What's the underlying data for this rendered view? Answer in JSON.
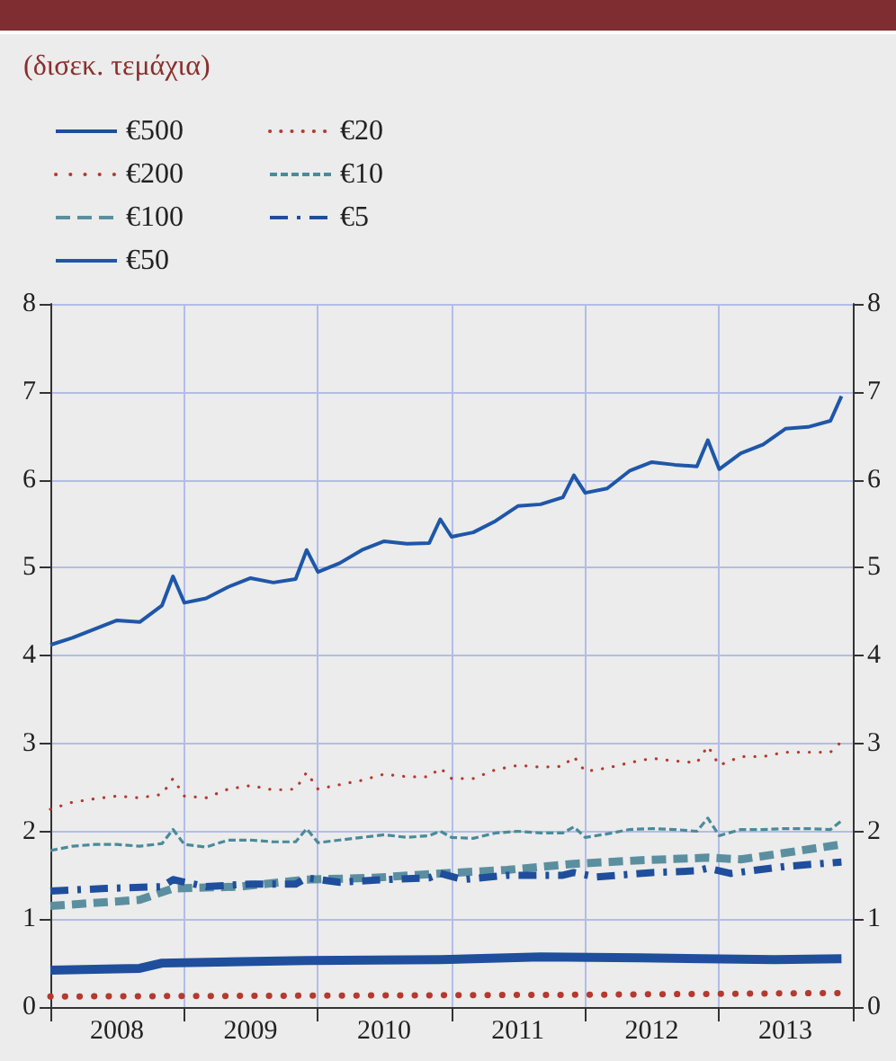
{
  "chart_data": {
    "type": "line",
    "subtitle": "(δισεκ. τεμάχια)",
    "xlim": [
      "2008-01",
      "2014-01"
    ],
    "xticks": [
      {
        "value": "2008-01",
        "label": null
      },
      {
        "value": "2008-07",
        "label": "2008"
      },
      {
        "value": "2009-01",
        "label": null
      },
      {
        "value": "2009-07",
        "label": "2009"
      },
      {
        "value": "2010-01",
        "label": null
      },
      {
        "value": "2010-07",
        "label": "2010"
      },
      {
        "value": "2011-01",
        "label": null
      },
      {
        "value": "2011-07",
        "label": "2011"
      },
      {
        "value": "2012-01",
        "label": null
      },
      {
        "value": "2012-07",
        "label": "2012"
      },
      {
        "value": "2013-01",
        "label": null
      },
      {
        "value": "2013-07",
        "label": "2013"
      },
      {
        "value": "2014-01",
        "label": null
      }
    ],
    "ylim": [
      0,
      8
    ],
    "yticks": [
      0,
      1,
      2,
      3,
      4,
      5,
      6,
      7,
      8
    ],
    "y2lim": [
      0,
      8
    ],
    "y2ticks": [
      0,
      1,
      2,
      3,
      4,
      5,
      6,
      7,
      8
    ],
    "grid": true,
    "legend": "top left",
    "marker": "none",
    "series": [
      {
        "name": "€500",
        "color": "#1f4e9c",
        "line_style": "solid",
        "x": [
          "2008-01",
          "2008-09",
          "2008-11",
          "2009-12",
          "2010-12",
          "2011-09",
          "2012-06",
          "2013-06",
          "2013-12"
        ],
        "values": [
          0.42,
          0.44,
          0.5,
          0.53,
          0.54,
          0.57,
          0.56,
          0.54,
          0.55
        ]
      },
      {
        "name": "€200",
        "color": "#b5392f",
        "line_style": "dotted",
        "x": [
          "2008-01",
          "2010-01",
          "2012-01",
          "2013-12"
        ],
        "values": [
          0.12,
          0.13,
          0.14,
          0.16
        ]
      },
      {
        "name": "€100",
        "color": "#5b8fa0",
        "line_style": "dashed",
        "x": [
          "2008-01",
          "2008-09",
          "2008-12",
          "2009-06",
          "2009-12",
          "2010-06",
          "2010-12",
          "2011-06",
          "2011-12",
          "2012-06",
          "2012-12",
          "2013-03",
          "2013-12"
        ],
        "values": [
          1.15,
          1.22,
          1.35,
          1.37,
          1.45,
          1.47,
          1.52,
          1.56,
          1.63,
          1.67,
          1.7,
          1.68,
          1.85
        ]
      },
      {
        "name": "€50",
        "color": "#1f56a8",
        "line_style": "solid",
        "x": [
          "2008-01",
          "2008-03",
          "2008-05",
          "2008-07",
          "2008-09",
          "2008-11",
          "2008-12",
          "2009-01",
          "2009-03",
          "2009-05",
          "2009-07",
          "2009-09",
          "2009-11",
          "2009-12",
          "2010-01",
          "2010-03",
          "2010-05",
          "2010-07",
          "2010-09",
          "2010-11",
          "2010-12",
          "2011-01",
          "2011-03",
          "2011-05",
          "2011-07",
          "2011-09",
          "2011-11",
          "2011-12",
          "2012-01",
          "2012-03",
          "2012-05",
          "2012-07",
          "2012-09",
          "2012-11",
          "2012-12",
          "2013-01",
          "2013-03",
          "2013-05",
          "2013-07",
          "2013-09",
          "2013-11",
          "2013-12"
        ],
        "values": [
          4.12,
          4.2,
          4.3,
          4.4,
          4.38,
          4.57,
          4.9,
          4.6,
          4.65,
          4.78,
          4.88,
          4.83,
          4.87,
          5.2,
          4.95,
          5.05,
          5.2,
          5.3,
          5.27,
          5.28,
          5.55,
          5.35,
          5.4,
          5.53,
          5.7,
          5.72,
          5.8,
          6.05,
          5.85,
          5.9,
          6.1,
          6.2,
          6.17,
          6.15,
          6.45,
          6.12,
          6.3,
          6.4,
          6.58,
          6.6,
          6.67,
          6.95
        ]
      },
      {
        "name": "€20",
        "color": "#b5392f",
        "line_style": "dotted",
        "x": [
          "2008-01",
          "2008-03",
          "2008-05",
          "2008-07",
          "2008-09",
          "2008-11",
          "2008-12",
          "2009-01",
          "2009-03",
          "2009-05",
          "2009-07",
          "2009-09",
          "2009-11",
          "2009-12",
          "2010-01",
          "2010-03",
          "2010-05",
          "2010-07",
          "2010-09",
          "2010-11",
          "2010-12",
          "2011-01",
          "2011-03",
          "2011-05",
          "2011-07",
          "2011-09",
          "2011-11",
          "2011-12",
          "2012-01",
          "2012-03",
          "2012-05",
          "2012-07",
          "2012-09",
          "2012-11",
          "2012-12",
          "2013-01",
          "2013-03",
          "2013-05",
          "2013-07",
          "2013-09",
          "2013-11",
          "2013-12"
        ],
        "values": [
          2.25,
          2.33,
          2.37,
          2.4,
          2.38,
          2.42,
          2.6,
          2.4,
          2.38,
          2.48,
          2.52,
          2.47,
          2.48,
          2.67,
          2.48,
          2.53,
          2.58,
          2.65,
          2.62,
          2.62,
          2.72,
          2.6,
          2.6,
          2.7,
          2.75,
          2.73,
          2.74,
          2.85,
          2.68,
          2.72,
          2.78,
          2.83,
          2.8,
          2.78,
          2.97,
          2.75,
          2.85,
          2.85,
          2.9,
          2.9,
          2.9,
          3.02
        ]
      },
      {
        "name": "€10",
        "color": "#4a8a9a",
        "line_style": "dashed",
        "x": [
          "2008-01",
          "2008-03",
          "2008-05",
          "2008-07",
          "2008-09",
          "2008-11",
          "2008-12",
          "2009-01",
          "2009-03",
          "2009-05",
          "2009-07",
          "2009-09",
          "2009-11",
          "2009-12",
          "2010-01",
          "2010-03",
          "2010-05",
          "2010-07",
          "2010-09",
          "2010-11",
          "2010-12",
          "2011-01",
          "2011-03",
          "2011-05",
          "2011-07",
          "2011-09",
          "2011-11",
          "2011-12",
          "2012-01",
          "2012-03",
          "2012-05",
          "2012-07",
          "2012-09",
          "2012-11",
          "2012-12",
          "2013-01",
          "2013-03",
          "2013-05",
          "2013-07",
          "2013-09",
          "2013-11",
          "2013-12"
        ],
        "values": [
          1.78,
          1.83,
          1.85,
          1.85,
          1.83,
          1.86,
          2.02,
          1.85,
          1.82,
          1.9,
          1.9,
          1.88,
          1.88,
          2.03,
          1.87,
          1.9,
          1.93,
          1.96,
          1.93,
          1.95,
          2.0,
          1.93,
          1.92,
          1.98,
          2.0,
          1.98,
          1.98,
          2.05,
          1.93,
          1.97,
          2.02,
          2.03,
          2.02,
          2.0,
          2.15,
          1.95,
          2.02,
          2.02,
          2.03,
          2.03,
          2.02,
          2.12
        ]
      },
      {
        "name": "€5",
        "color": "#1f4e9c",
        "line_style": "dashed",
        "x": [
          "2008-01",
          "2008-06",
          "2008-11",
          "2008-12",
          "2009-03",
          "2009-07",
          "2009-11",
          "2009-12",
          "2010-03",
          "2010-07",
          "2010-11",
          "2010-12",
          "2011-02",
          "2011-06",
          "2011-11",
          "2011-12",
          "2012-02",
          "2012-07",
          "2012-11",
          "2012-12",
          "2013-02",
          "2013-07",
          "2013-12"
        ],
        "values": [
          1.32,
          1.35,
          1.37,
          1.45,
          1.37,
          1.4,
          1.4,
          1.47,
          1.42,
          1.45,
          1.47,
          1.52,
          1.45,
          1.5,
          1.5,
          1.53,
          1.48,
          1.53,
          1.55,
          1.58,
          1.52,
          1.6,
          1.65
        ]
      }
    ]
  }
}
